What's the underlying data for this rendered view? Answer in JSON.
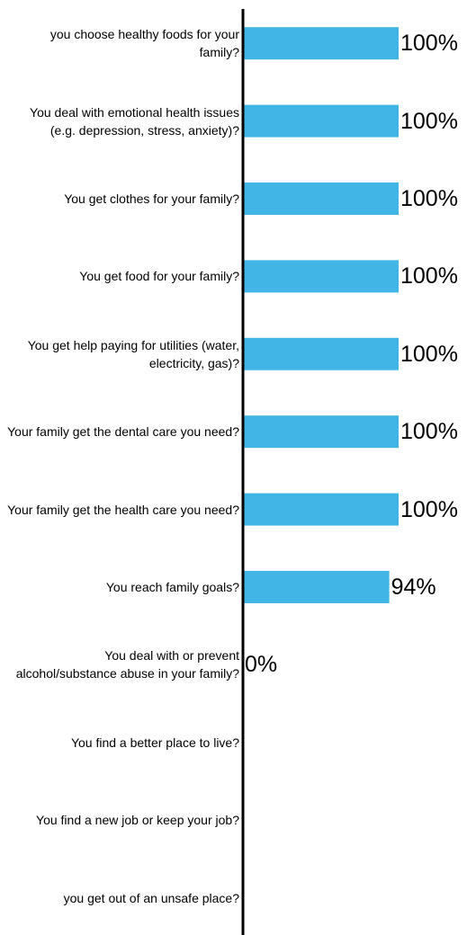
{
  "chart_data": {
    "type": "bar",
    "orientation": "horizontal",
    "categories": [
      "you choose healthy foods for your family?",
      "You deal with emotional health issues (e.g. depression, stress, anxiety)?",
      "You get clothes for your family?",
      "You get food for your family?",
      "You get help paying for utilities (water, electricity, gas)?",
      "Your family get the dental care you need?",
      "Your family get the health care you need?",
      "You reach family goals?",
      "You deal with or prevent alcohol/substance abuse in your family?",
      "You find a better place to live?",
      "You find a new job or keep your job?",
      "you get out of an unsafe place?"
    ],
    "values": [
      100,
      100,
      100,
      100,
      100,
      100,
      100,
      94,
      0,
      null,
      null,
      null
    ],
    "value_labels": [
      "100%",
      "100%",
      "100%",
      "100%",
      "100%",
      "100%",
      "100%",
      "94%",
      "0%",
      null,
      null,
      null
    ],
    "color": "#41b6e6",
    "xlim": [
      0,
      100
    ]
  }
}
